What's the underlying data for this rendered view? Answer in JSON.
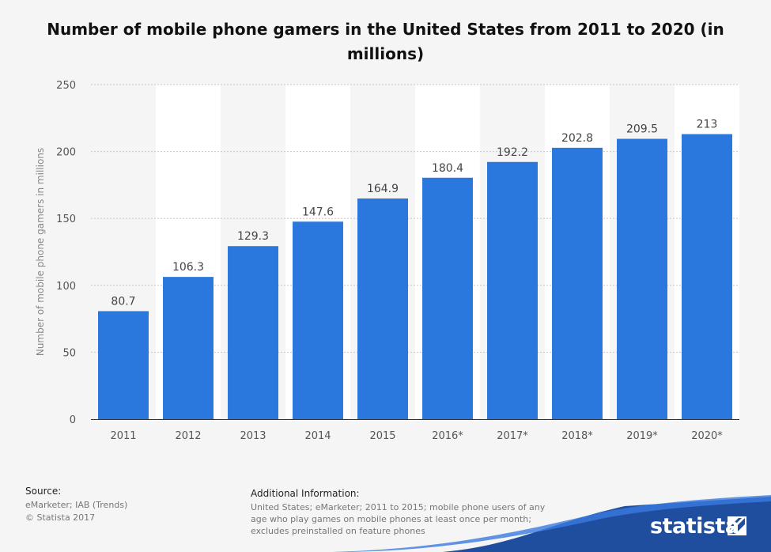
{
  "chart_data": {
    "type": "bar",
    "title": "Number of mobile phone gamers in the United States from 2011 to 2020 (in millions)",
    "ylabel": "Number of mobile phone gamers in millions",
    "xlabel": "",
    "categories": [
      "2011",
      "2012",
      "2013",
      "2014",
      "2015",
      "2016*",
      "2017*",
      "2018*",
      "2019*",
      "2020*"
    ],
    "values": [
      80.7,
      106.3,
      129.3,
      147.6,
      164.9,
      180.4,
      192.2,
      202.8,
      209.5,
      213
    ],
    "value_labels": [
      "80.7",
      "106.3",
      "129.3",
      "147.6",
      "164.9",
      "180.4",
      "192.2",
      "202.8",
      "209.5",
      "213"
    ],
    "ylim": [
      0,
      250
    ],
    "yticks": [
      0,
      50,
      100,
      150,
      200,
      250
    ],
    "grid": true,
    "bar_color": "#2a77dd"
  },
  "source": {
    "heading": "Source:",
    "lines": [
      "eMarketer; IAB (Trends)",
      "© Statista 2017"
    ]
  },
  "additional_info": {
    "heading": "Additional Information:",
    "text": "United States; eMarketer; 2011 to 2015; mobile phone users of any age who play games on mobile phones at least once per month; excludes preinstalled on feature phones"
  },
  "brand": {
    "name": "statista",
    "icon": "statista-logo-icon",
    "color": "#1f4e9e"
  }
}
